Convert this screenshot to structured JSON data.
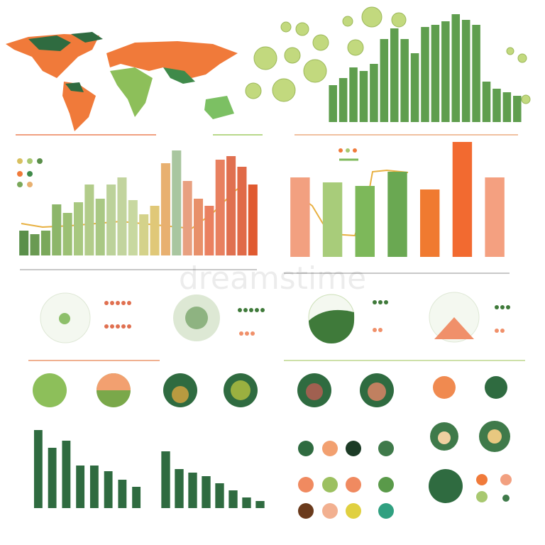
{
  "watermark": "dreamstime",
  "chart_data": [
    {
      "type": "bar",
      "values": [
        52,
        62,
        77,
        72,
        82,
        117,
        132,
        117,
        97,
        134,
        137,
        142,
        152,
        144,
        137,
        57,
        47,
        42,
        37
      ],
      "color": "#5f9e4e"
    },
    {
      "type": "bar",
      "values": [
        35,
        30,
        35,
        72,
        60,
        75,
        100,
        80,
        100,
        110,
        78,
        58,
        70,
        130,
        148,
        105,
        80,
        70,
        135,
        140,
        125,
        100
      ],
      "colors": [
        "#5a8f4a",
        "#6a9a52",
        "#7aa85a",
        "#8db66a",
        "#9cc074",
        "#a8c880",
        "#b2cc8a",
        "#a9c884",
        "#bcd29a",
        "#c2d49e",
        "#c8d8a0",
        "#d4d28a",
        "#e0c878",
        "#e8b070",
        "#a9c6a0",
        "#e8a080",
        "#e8906a",
        "#ea8060",
        "#e88060",
        "#e07050",
        "#e06a48",
        "#e05a30"
      ]
    },
    {
      "type": "bar",
      "values": [
        112,
        105,
        100,
        120,
        95,
        162,
        112
      ],
      "colors": [
        "#f2a080",
        "#a8cc7a",
        "#7db85a",
        "#6aa852",
        "#f07a30",
        "#f26a30",
        "#f4a080"
      ]
    },
    {
      "type": "bar",
      "values": [
        110,
        85,
        95,
        60,
        60,
        52,
        40,
        30
      ],
      "color": "#2f6b40"
    },
    {
      "type": "bar",
      "values": [
        80,
        55,
        50,
        45,
        35,
        25,
        15,
        10
      ],
      "color": "#2f6b40"
    }
  ]
}
